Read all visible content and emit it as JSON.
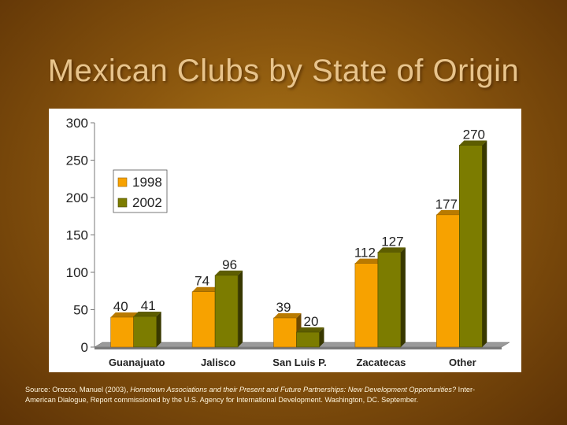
{
  "title": "Mexican Clubs by  State of Origin",
  "colors": {
    "series_1998": "#f7a200",
    "series_2002": "#7c7c00"
  },
  "chart_data": {
    "type": "bar",
    "categories": [
      "Guanajuato",
      "Jalisco",
      "San Luis P.",
      "Zacatecas",
      "Other"
    ],
    "series": [
      {
        "name": "1998",
        "values": [
          40,
          74,
          39,
          112,
          177
        ]
      },
      {
        "name": "2002",
        "values": [
          41,
          96,
          20,
          127,
          270
        ]
      }
    ],
    "ylim": [
      0,
      300
    ],
    "yticks": [
      "0",
      "50",
      "100",
      "150",
      "200",
      "250",
      "300"
    ],
    "legend_position": "upper-left",
    "grid": false,
    "style": "3d"
  },
  "source": {
    "prefix": "Source: Orozco, Manuel (2003), ",
    "italic": "Hometown Associations and their Present and Future Partnerships: New Development Opportunities?",
    "suffix": " Inter-American Dialogue, Report commissioned by the U.S. Agency for International Development. Washington, DC. September."
  }
}
